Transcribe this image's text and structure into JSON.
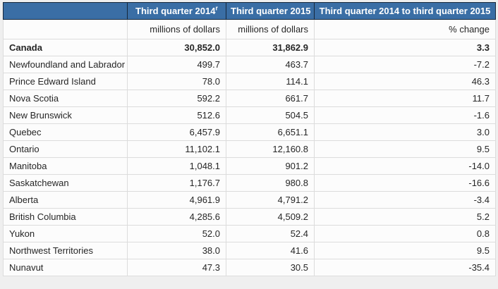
{
  "page": {
    "background": "#efefef"
  },
  "table": {
    "header": {
      "col1": "",
      "col2": {
        "label": "Third quarter 2014",
        "sup": "r"
      },
      "col3": {
        "label": "Third quarter 2015"
      },
      "col4": {
        "label": "Third quarter 2014 to third quarter 2015"
      },
      "bg_color": "#3a6ea5",
      "border_color": "#16283c",
      "text_color": "#ffffff"
    },
    "units_row": {
      "col1": "",
      "col2": "millions of dollars",
      "col3": "millions of dollars",
      "col4": "% change"
    },
    "rows": [
      {
        "name": "Canada",
        "q3_2014": "30,852.0",
        "q3_2015": "31,862.9",
        "change": "3.3",
        "bold": true
      },
      {
        "name": "Newfoundland and Labrador",
        "q3_2014": "499.7",
        "q3_2015": "463.7",
        "change": "-7.2"
      },
      {
        "name": "Prince Edward Island",
        "q3_2014": "78.0",
        "q3_2015": "114.1",
        "change": "46.3"
      },
      {
        "name": "Nova Scotia",
        "q3_2014": "592.2",
        "q3_2015": "661.7",
        "change": "11.7"
      },
      {
        "name": "New Brunswick",
        "q3_2014": "512.6",
        "q3_2015": "504.5",
        "change": "-1.6"
      },
      {
        "name": "Quebec",
        "q3_2014": "6,457.9",
        "q3_2015": "6,651.1",
        "change": "3.0"
      },
      {
        "name": "Ontario",
        "q3_2014": "11,102.1",
        "q3_2015": "12,160.8",
        "change": "9.5"
      },
      {
        "name": "Manitoba",
        "q3_2014": "1,048.1",
        "q3_2015": "901.2",
        "change": "-14.0"
      },
      {
        "name": "Saskatchewan",
        "q3_2014": "1,176.7",
        "q3_2015": "980.8",
        "change": "-16.6"
      },
      {
        "name": "Alberta",
        "q3_2014": "4,961.9",
        "q3_2015": "4,791.2",
        "change": "-3.4"
      },
      {
        "name": "British Columbia",
        "q3_2014": "4,285.6",
        "q3_2015": "4,509.2",
        "change": "5.2"
      },
      {
        "name": "Yukon",
        "q3_2014": "52.0",
        "q3_2015": "52.4",
        "change": "0.8"
      },
      {
        "name": "Northwest Territories",
        "q3_2014": "38.0",
        "q3_2015": "41.6",
        "change": "9.5"
      },
      {
        "name": "Nunavut",
        "q3_2014": "47.3",
        "q3_2015": "30.5",
        "change": "-35.4"
      }
    ]
  },
  "chart_data": {
    "type": "table",
    "columns": [
      "",
      "Third quarter 2014 (r = revised)",
      "Third quarter 2015",
      "Third quarter 2014 to third quarter 2015"
    ],
    "units": [
      "",
      "millions of dollars",
      "millions of dollars",
      "% change"
    ],
    "rows": [
      {
        "region": "Canada",
        "q3_2014_millions": 30852.0,
        "q3_2015_millions": 31862.9,
        "pct_change": 3.3
      },
      {
        "region": "Newfoundland and Labrador",
        "q3_2014_millions": 499.7,
        "q3_2015_millions": 463.7,
        "pct_change": -7.2
      },
      {
        "region": "Prince Edward Island",
        "q3_2014_millions": 78.0,
        "q3_2015_millions": 114.1,
        "pct_change": 46.3
      },
      {
        "region": "Nova Scotia",
        "q3_2014_millions": 592.2,
        "q3_2015_millions": 661.7,
        "pct_change": 11.7
      },
      {
        "region": "New Brunswick",
        "q3_2014_millions": 512.6,
        "q3_2015_millions": 504.5,
        "pct_change": -1.6
      },
      {
        "region": "Quebec",
        "q3_2014_millions": 6457.9,
        "q3_2015_millions": 6651.1,
        "pct_change": 3.0
      },
      {
        "region": "Ontario",
        "q3_2014_millions": 11102.1,
        "q3_2015_millions": 12160.8,
        "pct_change": 9.5
      },
      {
        "region": "Manitoba",
        "q3_2014_millions": 1048.1,
        "q3_2015_millions": 901.2,
        "pct_change": -14.0
      },
      {
        "region": "Saskatchewan",
        "q3_2014_millions": 1176.7,
        "q3_2015_millions": 980.8,
        "pct_change": -16.6
      },
      {
        "region": "Alberta",
        "q3_2014_millions": 4961.9,
        "q3_2015_millions": 4791.2,
        "pct_change": -3.4
      },
      {
        "region": "British Columbia",
        "q3_2014_millions": 4285.6,
        "q3_2015_millions": 4509.2,
        "pct_change": 5.2
      },
      {
        "region": "Yukon",
        "q3_2014_millions": 52.0,
        "q3_2015_millions": 52.4,
        "pct_change": 0.8
      },
      {
        "region": "Northwest Territories",
        "q3_2014_millions": 38.0,
        "q3_2015_millions": 41.6,
        "pct_change": 9.5
      },
      {
        "region": "Nunavut",
        "q3_2014_millions": 47.3,
        "q3_2015_millions": 30.5,
        "pct_change": -35.4
      }
    ]
  }
}
